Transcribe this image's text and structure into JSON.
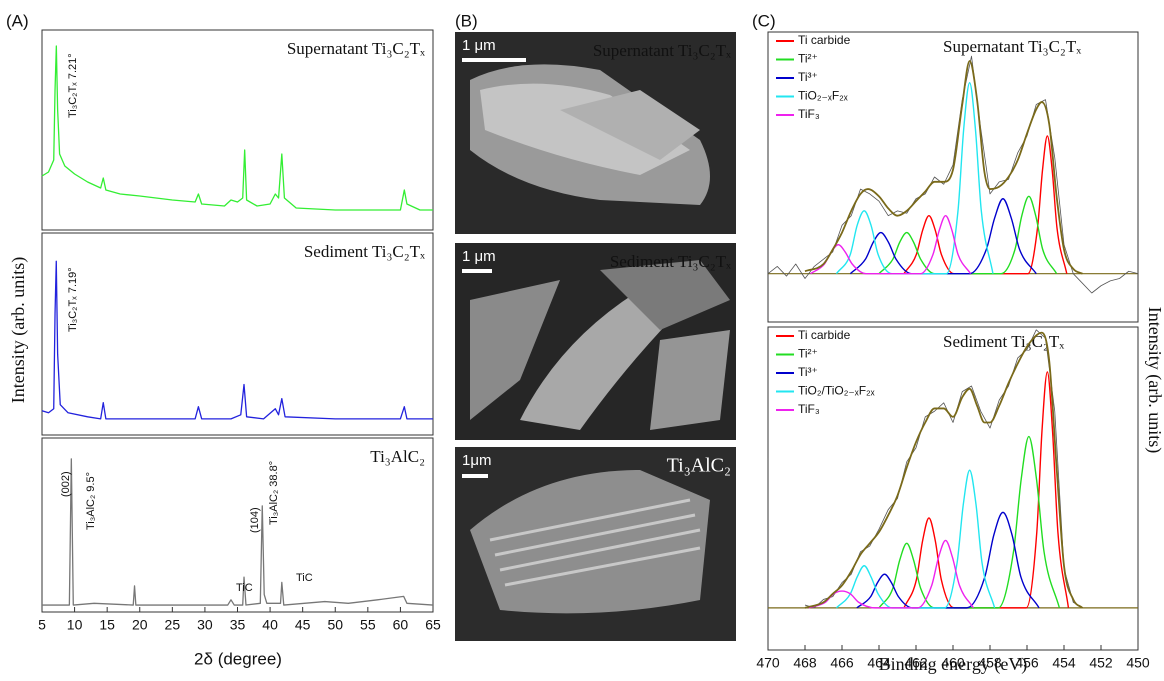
{
  "chart_data": [
    {
      "type": "line",
      "panel": "(A)",
      "title": "Supernatant Ti₃C₂Tₓ",
      "ylabel": "Intensity (arb. units)",
      "annotations": [
        "Ti₃C₂Tₓ 7.21°"
      ],
      "xlim": [
        5,
        65
      ],
      "ylim": [
        0,
        100
      ],
      "color": "#33ee33",
      "x": [
        5,
        6,
        6.8,
        7.0,
        7.2,
        7.4,
        7.7,
        8.5,
        10,
        12,
        14,
        14.4,
        14.8,
        17,
        20,
        25,
        28.5,
        29,
        29.5,
        33,
        34,
        35,
        35.8,
        36.1,
        36.4,
        38,
        40,
        40.8,
        41.3,
        41.8,
        42.2,
        44,
        50,
        55,
        60,
        60.6,
        61,
        63,
        65
      ],
      "values": [
        27,
        29,
        35,
        70,
        92,
        60,
        38,
        32,
        28,
        24,
        21,
        26,
        20,
        18,
        17,
        15,
        14,
        18,
        13,
        12,
        15,
        14,
        16,
        40,
        15,
        12,
        13,
        18,
        16,
        38,
        16,
        11,
        10,
        10,
        10,
        20,
        13,
        10,
        10
      ]
    },
    {
      "type": "line",
      "title": "Sediment Ti₃C₂Tₓ",
      "annotations": [
        "Ti₃C₂Tₓ  7.19°"
      ],
      "xlim": [
        5,
        65
      ],
      "ylim": [
        0,
        100
      ],
      "color": "#2222dd",
      "x": [
        5,
        6,
        6.8,
        7.0,
        7.19,
        7.4,
        7.8,
        9,
        12,
        14,
        14.4,
        14.8,
        20,
        28.5,
        29,
        29.5,
        34,
        35.5,
        36,
        36.4,
        39,
        40.8,
        41.3,
        41.8,
        42.3,
        50,
        60,
        60.6,
        61,
        65
      ],
      "values": [
        12,
        11,
        13,
        60,
        86,
        40,
        15,
        11,
        9,
        8,
        16,
        8,
        8,
        8,
        14,
        8,
        8,
        10,
        25,
        9,
        8,
        13,
        10,
        18,
        9,
        8,
        8,
        14,
        8,
        8
      ]
    },
    {
      "type": "line",
      "title": "Ti₃AlC₂",
      "xlabel": "2δ (degree)",
      "annotations": [
        "(002)",
        "Ti₃AlC₂   9.5°",
        "TiC",
        "(104)",
        "Ti₃AlC₂  38.8°",
        "TiC"
      ],
      "xlim": [
        5,
        65
      ],
      "ylim": [
        0,
        100
      ],
      "xticks": [
        5,
        10,
        15,
        20,
        25,
        30,
        35,
        40,
        45,
        50,
        55,
        60,
        65
      ],
      "color": "#777777",
      "x": [
        5,
        9.2,
        9.5,
        9.8,
        13,
        19,
        19.2,
        19.4,
        33.5,
        34,
        34.5,
        35.8,
        36,
        36.3,
        38.5,
        38.8,
        39.1,
        39.5,
        41.6,
        41.8,
        42.1,
        48.4,
        52,
        56.5,
        60.5,
        61,
        65
      ],
      "values": [
        4,
        4,
        88,
        4,
        5,
        4,
        15,
        4,
        4,
        7,
        4,
        4,
        20,
        4,
        5,
        61,
        10,
        5,
        5,
        17,
        4,
        6,
        5,
        7,
        9,
        5,
        4
      ]
    },
    {
      "type": "xps",
      "panel": "(C)",
      "title": "Supernatant Ti₃C₂Tₓ",
      "xlim": [
        470,
        450
      ],
      "ylim": [
        -20,
        100
      ],
      "series": [
        {
          "name": "Ti carbide",
          "color": "#ff0000",
          "x": [
            462.65,
            461.98,
            461.64,
            461.3,
            460.96,
            460.63,
            459.95,
            455.95,
            455.43,
            455.16,
            454.9,
            454.64,
            454.38,
            453.85
          ],
          "values": [
            0,
            8,
            18,
            24,
            18,
            8,
            0,
            0,
            19,
            43,
            57,
            43,
            19,
            0
          ]
        },
        {
          "name": "Ti²⁺",
          "color": "#22dd22",
          "x": [
            464.0,
            463.25,
            462.88,
            462.5,
            462.13,
            461.75,
            461.0,
            457.4,
            456.65,
            456.28,
            455.9,
            455.53,
            455.15,
            454.4
          ],
          "values": [
            0,
            6,
            13,
            17,
            13,
            6,
            0,
            0,
            10,
            24,
            32,
            24,
            10,
            0
          ]
        },
        {
          "name": "Ti³⁺",
          "color": "#0000cc",
          "x": [
            465.55,
            464.73,
            464.31,
            463.9,
            463.49,
            463.08,
            462.25,
            459.1,
            458.2,
            457.75,
            457.3,
            456.85,
            456.4,
            455.5
          ],
          "values": [
            0,
            6,
            13,
            17,
            13,
            6,
            0,
            0,
            10,
            23,
            31,
            23,
            10,
            0
          ]
        },
        {
          "name": "TiO₂₋ₓF₂ₓ",
          "color": "#22e6f0",
          "x": [
            466.3,
            465.55,
            465.18,
            464.8,
            464.43,
            464.05,
            463.3,
            460.36,
            459.73,
            459.42,
            459.1,
            458.79,
            458.47,
            457.84
          ],
          "values": [
            0,
            8,
            20,
            26,
            20,
            8,
            0,
            0,
            26,
            60,
            79,
            60,
            26,
            0
          ]
        },
        {
          "name": "TiF₃",
          "color": "#ee22ee",
          "x": [
            467.7,
            466.95,
            466.58,
            466.2,
            465.83,
            465.45,
            464.7,
            461.75,
            461.08,
            460.74,
            460.4,
            460.06,
            459.73,
            459.05
          ],
          "values": [
            0,
            4,
            9,
            12,
            9,
            4,
            0,
            0,
            8,
            18,
            24,
            18,
            8,
            0
          ]
        }
      ],
      "envelope": {
        "color": "#7a6a1a",
        "x": [
          468,
          467,
          466.5,
          466,
          465.5,
          465,
          464.6,
          464,
          463.5,
          463,
          462.5,
          462,
          461.5,
          461,
          460.5,
          460,
          459.5,
          459.1,
          458.7,
          458.3,
          458,
          457.5,
          457,
          456.5,
          456,
          455.5,
          455.2,
          454.8,
          454.4,
          454,
          453.5,
          453
        ],
        "values": [
          1,
          4,
          10,
          17,
          26,
          33,
          35,
          32,
          27,
          24,
          26,
          30,
          34,
          38,
          38,
          43,
          70,
          88,
          72,
          42,
          35,
          36,
          40,
          47,
          58,
          68,
          71,
          62,
          32,
          10,
          2,
          0
        ]
      },
      "raw": {
        "color": "#555555",
        "x": [
          470,
          469.5,
          469,
          468.5,
          468,
          467.5,
          467,
          466.5,
          466,
          465.5,
          465,
          464.5,
          464,
          463.5,
          463,
          462.5,
          462,
          461.5,
          461,
          460.5,
          460,
          459.5,
          459,
          458.5,
          458,
          457.5,
          457,
          456.5,
          456,
          455.5,
          455,
          454.5,
          454,
          453.5,
          453,
          452.5,
          452,
          451.5,
          451,
          450.5,
          450
        ],
        "values": [
          0,
          3,
          -1,
          4,
          -2,
          3,
          6,
          9,
          20,
          24,
          35,
          33,
          30,
          24,
          26,
          25,
          31,
          33,
          40,
          37,
          45,
          72,
          90,
          60,
          33,
          38,
          39,
          50,
          57,
          70,
          72,
          48,
          12,
          0,
          -4,
          -8,
          -5,
          -3,
          -2,
          1,
          0
        ]
      }
    },
    {
      "type": "xps",
      "title": "Sediment Ti₃C₂Tₓ",
      "xlabel": "Binding energy (eV)",
      "ylabel": "Intensity (arb. units)",
      "xlim": [
        470,
        450
      ],
      "ylim": [
        -15,
        100
      ],
      "xticks": [
        470,
        468,
        466,
        464,
        462,
        460,
        458,
        456,
        454,
        452,
        450
      ],
      "series": [
        {
          "name": "Ti carbide",
          "color": "#ff0000",
          "x": [
            462.65,
            461.98,
            461.64,
            461.3,
            460.96,
            460.63,
            459.95,
            456.04,
            455.47,
            455.19,
            454.9,
            454.62,
            454.33,
            453.76
          ],
          "values": [
            0,
            10,
            24,
            32,
            24,
            10,
            0,
            0,
            27,
            63,
            84,
            63,
            27,
            0
          ]
        },
        {
          "name": "Ti²⁺",
          "color": "#22dd22",
          "x": [
            464.0,
            463.25,
            462.88,
            462.5,
            462.13,
            461.75,
            461.0,
            457.55,
            456.73,
            456.31,
            455.9,
            455.49,
            455.08,
            454.25
          ],
          "values": [
            0,
            7,
            17,
            23,
            17,
            7,
            0,
            0,
            20,
            46,
            61,
            46,
            20,
            0
          ]
        },
        {
          "name": "Ti³⁺",
          "color": "#0000cc",
          "x": [
            465.2,
            464.45,
            464.08,
            463.7,
            463.33,
            462.95,
            462.2,
            459.25,
            458.28,
            457.79,
            457.3,
            456.81,
            456.33,
            455.35
          ],
          "values": [
            0,
            4,
            9,
            12,
            9,
            4,
            0,
            0,
            11,
            26,
            34,
            26,
            11,
            0
          ]
        },
        {
          "name": "TiO₂/TiO₂₋ₓF₂ₓ",
          "color": "#22e6f0",
          "x": [
            466.3,
            465.55,
            465.18,
            464.8,
            464.43,
            464.05,
            463.3,
            460.45,
            459.78,
            459.44,
            459.1,
            458.76,
            458.43,
            457.75
          ],
          "values": [
            0,
            5,
            11,
            15,
            11,
            5,
            0,
            0,
            16,
            37,
            49,
            37,
            16,
            0
          ]
        },
        {
          "name": "TiF₃",
          "color": "#ee22ee",
          "x": [
            467.8,
            466.9,
            466.45,
            466.0,
            465.55,
            465.1,
            464.2,
            461.9,
            461.15,
            460.78,
            460.4,
            460.03,
            459.65,
            458.9
          ],
          "values": [
            0,
            2,
            5,
            6,
            5,
            2,
            0,
            0,
            8,
            18,
            24,
            18,
            8,
            0
          ]
        }
      ],
      "envelope": {
        "color": "#7a6a1a",
        "x": [
          468,
          467,
          466.5,
          466,
          465.5,
          465,
          464.5,
          464,
          463.5,
          463,
          462.5,
          462,
          461.5,
          461,
          460.5,
          460,
          459.5,
          459.1,
          458.7,
          458.3,
          458,
          457.5,
          457,
          456.5,
          456,
          455.5,
          455.2,
          454.8,
          454.4,
          454,
          453.5,
          453
        ],
        "values": [
          0,
          2,
          5,
          8,
          13,
          19,
          23,
          27,
          33,
          40,
          50,
          59,
          66,
          71,
          71,
          68,
          75,
          78,
          72,
          66,
          66,
          72,
          80,
          87,
          93,
          97,
          98,
          88,
          50,
          15,
          3,
          0
        ]
      },
      "raw": {
        "color": "#555555",
        "x": [
          468,
          467.5,
          467,
          466.5,
          466,
          465.5,
          465,
          464.5,
          464,
          463.5,
          463,
          462.5,
          462,
          461.5,
          461,
          460.5,
          460,
          459.5,
          459,
          458.5,
          458,
          457.5,
          457,
          456.5,
          456,
          455.5,
          455,
          454.5,
          454,
          453.5,
          453
        ],
        "values": [
          1,
          0,
          3,
          4,
          9,
          12,
          20,
          22,
          28,
          35,
          39,
          52,
          57,
          68,
          70,
          73,
          66,
          77,
          79,
          70,
          64,
          74,
          79,
          89,
          92,
          99,
          96,
          70,
          14,
          2,
          0
        ]
      }
    }
  ],
  "sem_panel": {
    "panel": "(B)",
    "images": [
      {
        "scale_bar": "1 μm",
        "label": "Supernatant Ti₃C₂Tₓ"
      },
      {
        "scale_bar": "1 μm",
        "label": "Sediment Ti₃C₂Tₓ"
      },
      {
        "scale_bar": "1μm",
        "label": "Ti₃AlC₂"
      }
    ]
  }
}
